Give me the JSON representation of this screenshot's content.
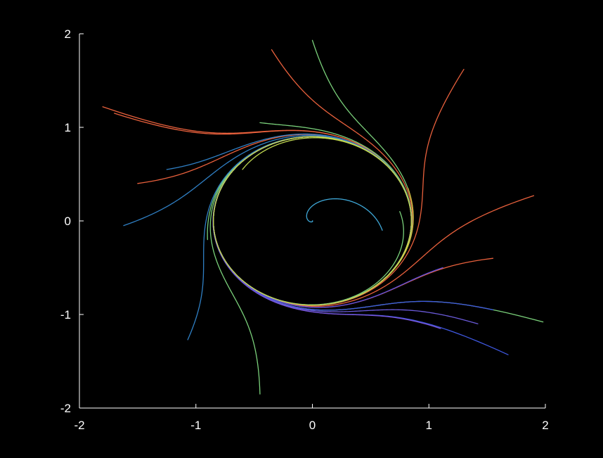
{
  "chart_data": {
    "type": "line",
    "title": "",
    "xlabel": "",
    "ylabel": "",
    "xlim": [
      -2,
      2
    ],
    "ylim": [
      -2,
      2
    ],
    "grid": false,
    "legend": "none",
    "background": "#000000",
    "axis_color": "#ffffff",
    "xticks": [
      {
        "value": -2,
        "label": "-2"
      },
      {
        "value": -1,
        "label": "-1"
      },
      {
        "value": 0,
        "label": "0"
      },
      {
        "value": 1,
        "label": "1"
      },
      {
        "value": 2,
        "label": "2"
      }
    ],
    "yticks": [
      {
        "value": -2,
        "label": "-2"
      },
      {
        "value": -1,
        "label": "-1"
      },
      {
        "value": 0,
        "label": "0"
      },
      {
        "value": 1,
        "label": "1"
      },
      {
        "value": 2,
        "label": "2"
      }
    ],
    "limit_cycle": {
      "rx": 0.85,
      "ry": 0.9,
      "omega": 1.0
    },
    "series": [
      {
        "color": "#e8603c",
        "start": [
          1.3,
          1.62
        ],
        "dir": 1
      },
      {
        "color": "#e8603c",
        "start": [
          1.9,
          0.27
        ],
        "dir": 1
      },
      {
        "color": "#e8603c",
        "start": [
          1.55,
          -0.4
        ],
        "dir": 1
      },
      {
        "color": "#e8603c",
        "start": [
          -0.35,
          1.83
        ],
        "dir": 1
      },
      {
        "color": "#e8603c",
        "start": [
          -1.8,
          1.22
        ],
        "dir": 1
      },
      {
        "color": "#e8603c",
        "start": [
          -1.7,
          1.15
        ],
        "dir": 1
      },
      {
        "color": "#e8603c",
        "start": [
          -1.5,
          0.4
        ],
        "dir": 1
      },
      {
        "color": "#7ad07a",
        "start": [
          0.0,
          1.93
        ],
        "dir": 1
      },
      {
        "color": "#7ad07a",
        "start": [
          -0.45,
          1.05
        ],
        "dir": 1
      },
      {
        "color": "#7ad07a",
        "start": [
          1.98,
          -1.08
        ],
        "dir": 1
      },
      {
        "color": "#7ad07a",
        "start": [
          -0.45,
          -1.85
        ],
        "dir": 1
      },
      {
        "color": "#7ad07a",
        "start": [
          0.75,
          0.1
        ],
        "dir": 1
      },
      {
        "color": "#7ad07a",
        "start": [
          -0.9,
          -0.2
        ],
        "dir": 1
      },
      {
        "color": "#2f7fc4",
        "start": [
          -1.62,
          -0.05
        ],
        "dir": 1
      },
      {
        "color": "#2f7fc4",
        "start": [
          -1.25,
          0.55
        ],
        "dir": 1
      },
      {
        "color": "#2f7fc4",
        "start": [
          -1.07,
          -1.27
        ],
        "dir": 1
      },
      {
        "color": "#3fa8d8",
        "start": [
          0.6,
          -0.1
        ],
        "dir": -1
      },
      {
        "color": "#3f58e0",
        "start": [
          1.68,
          -1.43
        ],
        "dir": 1
      },
      {
        "color": "#3f58e0",
        "start": [
          1.55,
          -0.95
        ],
        "dir": 1
      },
      {
        "color": "#5a4fe0",
        "start": [
          1.12,
          -0.5
        ],
        "dir": 1
      },
      {
        "color": "#7a55d8",
        "start": [
          1.1,
          -1.15
        ],
        "dir": 1
      },
      {
        "color": "#6a5ad8",
        "start": [
          1.42,
          -1.1
        ],
        "dir": 1
      },
      {
        "color": "#d8c040",
        "start": [
          0.82,
          0.35
        ],
        "dir": 1
      },
      {
        "color": "#c0d850",
        "start": [
          -0.6,
          0.55
        ],
        "dir": 1
      }
    ]
  }
}
